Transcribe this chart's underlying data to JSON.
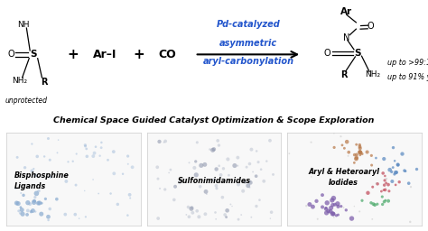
{
  "title_text": "Chemical Space Guided Catalyst Optimization & Scope Exploration",
  "reaction_label_left": "unprotected",
  "reagent1": "Ar–I",
  "reagent2": "CO",
  "arrow_above1": "Pd-catalyzed",
  "arrow_above2": "asymmetric",
  "arrow_above3": "aryl-carbonylation",
  "result_text1": "up to >99:1 er",
  "result_text2": "up to 91% yield",
  "panel_labels": [
    "Bisphosphine\nLigands",
    "Sulfonimidamides",
    "Aryl & Heteroaryl\nIodides"
  ],
  "arrow_color": "#2255cc",
  "bg_color": "#ffffff",
  "panel_bg": "#f8f8f8",
  "scatter_color_1": "#88aad0",
  "scatter_color_2": "#b0b8c8",
  "scatter_color_3_brown": "#b87848",
  "scatter_color_3_blue": "#5888c0",
  "scatter_color_3_red": "#c04858",
  "scatter_color_3_green": "#48a868",
  "scatter_color_3_purple": "#7858a8"
}
